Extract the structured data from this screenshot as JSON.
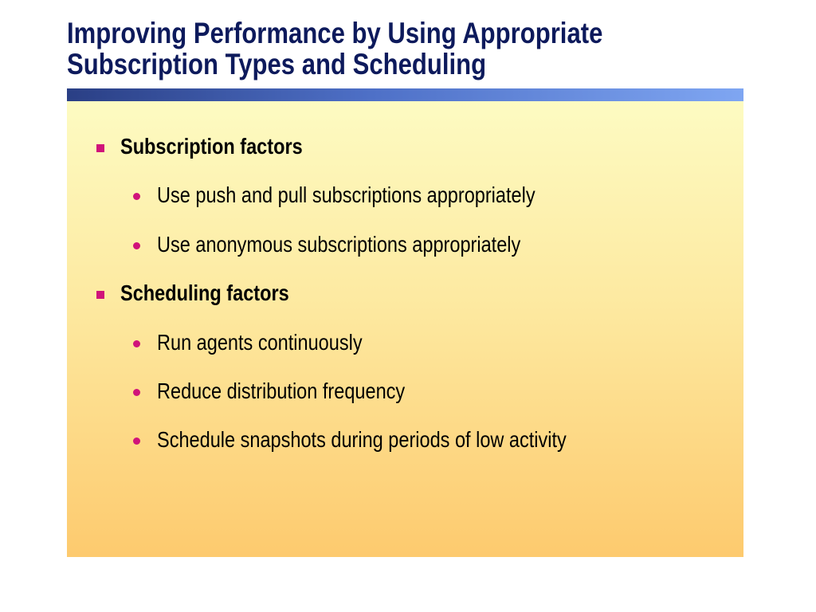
{
  "slide": {
    "title_line1": "Improving Performance by Using Appropriate",
    "title_line2": "Subscription Types and Scheduling",
    "bullets": [
      {
        "level": 1,
        "text": "Subscription factors"
      },
      {
        "level": 2,
        "text": "Use push and pull subscriptions appropriately"
      },
      {
        "level": 2,
        "text": "Use anonymous subscriptions appropriately"
      },
      {
        "level": 1,
        "text": "Scheduling factors"
      },
      {
        "level": 2,
        "text": "Run agents continuously"
      },
      {
        "level": 2,
        "text": "Reduce distribution frequency"
      },
      {
        "level": 2,
        "text": "Schedule snapshots during periods of low activity"
      }
    ]
  },
  "colors": {
    "title": "#0d1a5c",
    "bullet_marker": "#d0137a",
    "title_bar_start": "#2a3f85",
    "title_bar_end": "#7fa6f2",
    "panel_top": "#fdfbc2",
    "panel_bottom": "#fdca6e"
  },
  "icons": {
    "level1_marker": "square-bullet-icon",
    "level2_marker": "round-bullet-icon"
  }
}
